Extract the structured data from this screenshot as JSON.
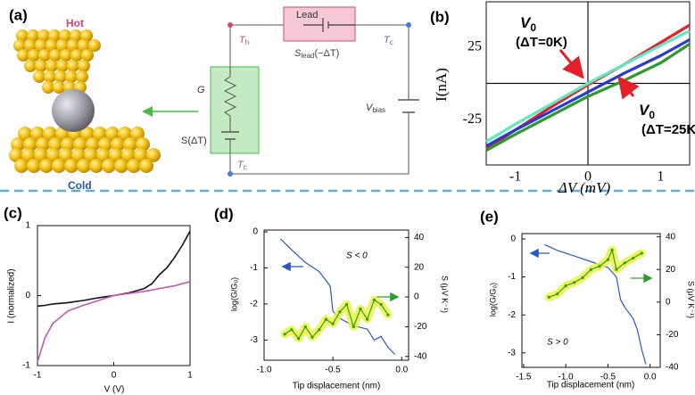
{
  "diagram": {
    "panel": "(a)",
    "hot": "Hot",
    "cold": "Cold",
    "lead": "Lead",
    "s_lead": {
      "symbol": "S",
      "sub": "lead",
      "arg": "(−ΔT)"
    },
    "t_h": {
      "symbol": "T",
      "sub": "h"
    },
    "t_c_top": {
      "symbol": "T",
      "sub": "c"
    },
    "t_c_bottom": {
      "symbol": "T",
      "sub": "c"
    },
    "g": "G",
    "s": "S(ΔT)",
    "v_bias": {
      "symbol": "V",
      "sub": "bias"
    }
  },
  "chart_data": [
    {
      "type": "line",
      "panel": "(b)",
      "xlabel": "ΔV (mV)",
      "ylabel": "I(nA)",
      "x": [
        -1.4,
        -1.0,
        -0.5,
        0,
        0.5,
        1.0,
        1.4
      ],
      "series": [
        {
          "color": "#e3202a",
          "values": [
            -45,
            -32,
            -16,
            -1,
            13,
            28,
            40
          ]
        },
        {
          "color": "#5ee8c4",
          "values": [
            -40,
            -28,
            -14,
            0,
            13,
            26,
            36
          ]
        },
        {
          "color": "#2a3ad0",
          "values": [
            -43,
            -32,
            -19,
            -6,
            7,
            19,
            30
          ]
        },
        {
          "color": "#2a9a2a",
          "values": [
            -46,
            -35,
            -22,
            -9,
            2,
            14,
            27
          ]
        }
      ],
      "xlim": [
        -1.4,
        1.4
      ],
      "ylim": [
        -56,
        56
      ],
      "xticks": [
        -1,
        0,
        1
      ],
      "yticks": [
        25,
        -25
      ],
      "crosshair": true,
      "annotations": [
        {
          "symbol": "V",
          "sub": "0",
          "condition": "(ΔT=0K)",
          "color": "#e3202a"
        },
        {
          "symbol": "V",
          "sub": "0",
          "condition": "(ΔT=25K)",
          "color": "#e3202a"
        }
      ]
    },
    {
      "type": "line",
      "panel": "(c)",
      "xlabel": "V (V)",
      "ylabel": "I (normalized)",
      "x": [
        -1,
        -0.9,
        -0.8,
        -0.6,
        -0.4,
        -0.2,
        0,
        0.2,
        0.4,
        0.5,
        0.6,
        0.7,
        0.8,
        0.9,
        1.0
      ],
      "series": [
        {
          "color": "#111111",
          "values": [
            -0.15,
            -0.14,
            -0.12,
            -0.1,
            -0.07,
            -0.03,
            0,
            0.04,
            0.1,
            0.17,
            0.3,
            0.4,
            0.55,
            0.72,
            0.92
          ]
        },
        {
          "color": "#c257b5",
          "values": [
            -0.95,
            -0.6,
            -0.4,
            -0.22,
            -0.14,
            -0.07,
            0,
            0.03,
            0.06,
            0.08,
            0.1,
            0.12,
            0.14,
            0.17,
            0.2
          ]
        }
      ],
      "xlim": [
        -1,
        1
      ],
      "ylim": [
        -1,
        1
      ],
      "xticks": [
        -1,
        0,
        1
      ],
      "yticks": [
        1,
        0,
        -1
      ]
    },
    {
      "type": "line",
      "panel": "(d)",
      "xlabel": "Tip displacement (nm)",
      "ylabel": "log(G/G₀)",
      "y2label": "S (μV K⁻¹)",
      "note": "S < 0",
      "series": [
        {
          "color": "#2a58c8",
          "x": [
            -0.88,
            -0.8,
            -0.7,
            -0.6,
            -0.52,
            -0.5,
            -0.45,
            -0.35,
            -0.25,
            -0.2,
            -0.15,
            -0.1,
            -0.05
          ],
          "values": [
            -0.2,
            -0.5,
            -0.85,
            -1.1,
            -1.5,
            -2.2,
            -2.4,
            -2.6,
            -2.7,
            -3.0,
            -2.9,
            -3.2,
            -3.4
          ]
        },
        {
          "color": "#2aa02a",
          "axis": "y2",
          "highlight": "#eef040",
          "x": [
            -0.85,
            -0.8,
            -0.75,
            -0.7,
            -0.65,
            -0.6,
            -0.55,
            -0.5,
            -0.45,
            -0.4,
            -0.35,
            -0.3,
            -0.25,
            -0.2,
            -0.15,
            -0.1
          ],
          "values": [
            -25,
            -22,
            -28,
            -20,
            -27,
            -22,
            -15,
            -18,
            -10,
            -5,
            -20,
            -8,
            -15,
            -2,
            -5,
            -12
          ]
        }
      ],
      "xlim": [
        -1.0,
        0.05
      ],
      "ylim": [
        -3.56,
        0.05
      ],
      "y2lim": [
        -42.5,
        45
      ],
      "xticks": [
        {
          "value": -1.0,
          "label": "-1.0"
        },
        {
          "value": -0.5,
          "label": "-0.5"
        },
        {
          "value": 0.0,
          "label": "0.0"
        }
      ],
      "yticks": [
        0,
        -1,
        -2,
        -3
      ],
      "y2ticks": [
        40,
        20,
        0,
        -20,
        -40
      ]
    },
    {
      "type": "line",
      "panel": "(e)",
      "xlabel": "Tip displacement (nm)",
      "ylabel": "log(G/G₀)",
      "y2label": "S (μV K⁻¹)",
      "note": "S > 0",
      "series": [
        {
          "color": "#2a58c8",
          "x": [
            -1.25,
            -1.1,
            -0.9,
            -0.7,
            -0.5,
            -0.4,
            -0.35,
            -0.3,
            -0.2,
            -0.15,
            -0.1,
            -0.05
          ],
          "values": [
            -0.15,
            -0.3,
            -0.45,
            -0.6,
            -0.75,
            -1.0,
            -1.6,
            -1.8,
            -2.1,
            -2.4,
            -2.9,
            -3.3
          ]
        },
        {
          "color": "#2aa02a",
          "axis": "y2",
          "highlight": "#eef040",
          "x": [
            -1.2,
            -1.1,
            -1.0,
            -0.9,
            -0.8,
            -0.7,
            -0.6,
            -0.5,
            -0.45,
            -0.4,
            -0.3,
            -0.2,
            -0.1
          ],
          "values": [
            3,
            5,
            10,
            12,
            15,
            20,
            22,
            26,
            32,
            20,
            24,
            27,
            30
          ]
        }
      ],
      "xlim": [
        -1.52,
        0.12
      ],
      "ylim": [
        -3.38,
        0.14
      ],
      "y2lim": [
        -40,
        42
      ],
      "xticks": [
        {
          "value": -1.5,
          "label": "-1.5"
        },
        {
          "value": -1.0,
          "label": "-1.0"
        },
        {
          "value": -0.5,
          "label": "-0.5"
        },
        {
          "value": 0.0,
          "label": "0.0"
        }
      ],
      "yticks": [
        0,
        -1,
        -2,
        -3
      ],
      "y2ticks": [
        40,
        20,
        0,
        -20,
        -40
      ]
    }
  ]
}
